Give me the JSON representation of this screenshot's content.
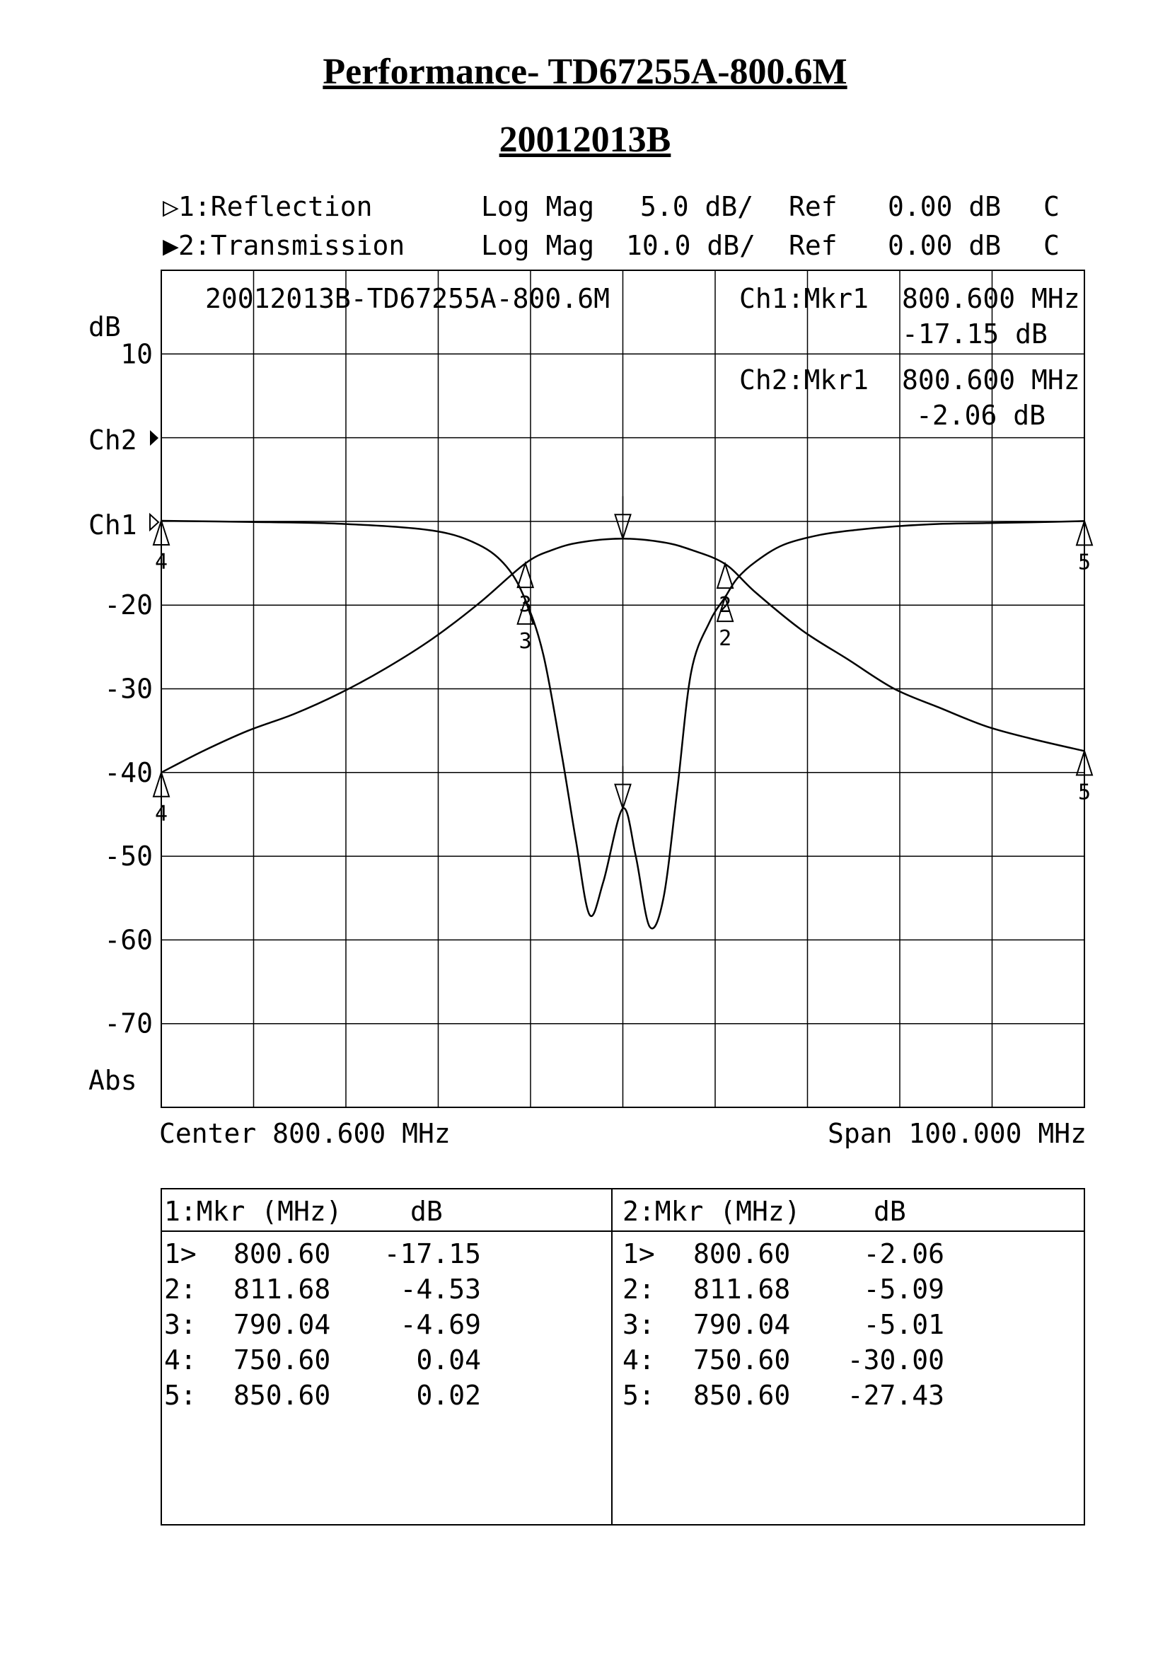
{
  "page": {
    "title": "Performance- TD67255A-800.6M",
    "subtitle": "20012013B"
  },
  "header": {
    "ch1": {
      "marker": "▷",
      "label": "1:Reflection",
      "format": "Log Mag",
      "scale": "5.0 dB/",
      "ref_label": "Ref",
      "ref": "0.00 dB",
      "flag": "C"
    },
    "ch2": {
      "marker": "▶",
      "label": "2:Transmission",
      "format": "Log Mag",
      "scale": "10.0 dB/",
      "ref_label": "Ref",
      "ref": "0.00 dB",
      "flag": "C"
    }
  },
  "plot": {
    "trace_title": "20012013B-TD67255A-800.6M",
    "readout": [
      {
        "label": "Ch1:Mkr1",
        "freq": "800.600 MHz",
        "value": "-17.15 dB"
      },
      {
        "label": "Ch2:Mkr1",
        "freq": "800.600 MHz",
        "value": "-2.06 dB"
      }
    ],
    "unit": "dB",
    "abs_label": "Abs",
    "ch1_label": "Ch1",
    "ch2_label": "Ch2",
    "y_ticks": [
      "10",
      "",
      "",
      "-20",
      "-30",
      "-40",
      "-50",
      "-60",
      "-70"
    ],
    "center": "Center 800.600 MHz",
    "span": "Span 100.000 MHz"
  },
  "chart_data": {
    "type": "line",
    "xlim": [
      750.6,
      850.6
    ],
    "x_unit": "MHz",
    "grid": true,
    "series": [
      {
        "name": "1:Reflection",
        "scale_db_per_div": 5.0,
        "ref_db": 0.0,
        "x": [
          750.6,
          760,
          770,
          780,
          785,
          788,
          790.04,
          792,
          794,
          795.5,
          797,
          798.5,
          800.6,
          802,
          803.5,
          805,
          806.5,
          808,
          810,
          811.68,
          813,
          815,
          818,
          822,
          826,
          830,
          835,
          840,
          845,
          850.6
        ],
        "values": [
          0.04,
          -0.03,
          -0.14,
          -0.55,
          -1.4,
          -2.7,
          -4.69,
          -8,
          -14,
          -19,
          -23.5,
          -21.5,
          -17.15,
          -20,
          -24.2,
          -22.5,
          -16,
          -9,
          -6,
          -4.53,
          -3.4,
          -2.4,
          -1.4,
          -0.8,
          -0.5,
          -0.3,
          -0.15,
          -0.1,
          -0.05,
          0.02
        ]
      },
      {
        "name": "2:Transmission",
        "scale_db_per_div": 10.0,
        "ref_db": 0.0,
        "x": [
          750.6,
          755,
          760,
          765,
          770,
          775,
          780,
          785,
          790.04,
          793,
          796,
          800.6,
          805,
          808,
          811.68,
          815,
          820,
          825,
          830,
          835,
          840,
          845,
          850.6
        ],
        "values": [
          -30.0,
          -27.5,
          -25.0,
          -23.0,
          -20.5,
          -17.5,
          -14.0,
          -9.8,
          -5.01,
          -3.4,
          -2.5,
          -2.06,
          -2.5,
          -3.4,
          -5.09,
          -8.5,
          -13.0,
          -16.5,
          -20.0,
          -22.3,
          -24.5,
          -26.0,
          -27.43
        ]
      }
    ],
    "markers": {
      "ch1": [
        {
          "id": "1>",
          "freq": "800.60",
          "db": "-17.15"
        },
        {
          "id": "2:",
          "freq": "811.68",
          "db": "-4.53"
        },
        {
          "id": "3:",
          "freq": "790.04",
          "db": "-4.69"
        },
        {
          "id": "4:",
          "freq": "750.60",
          "db": "0.04"
        },
        {
          "id": "5:",
          "freq": "850.60",
          "db": "0.02"
        }
      ],
      "ch2": [
        {
          "id": "1>",
          "freq": "800.60",
          "db": "-2.06"
        },
        {
          "id": "2:",
          "freq": "811.68",
          "db": "-5.09"
        },
        {
          "id": "3:",
          "freq": "790.04",
          "db": "-5.01"
        },
        {
          "id": "4:",
          "freq": "750.60",
          "db": "-30.00"
        },
        {
          "id": "5:",
          "freq": "850.60",
          "db": "-27.43"
        }
      ]
    }
  },
  "table": {
    "ch1_header": {
      "mkr": "1:Mkr (MHz)",
      "db": "dB"
    },
    "ch2_header": {
      "mkr": "2:Mkr (MHz)",
      "db": "dB"
    }
  }
}
